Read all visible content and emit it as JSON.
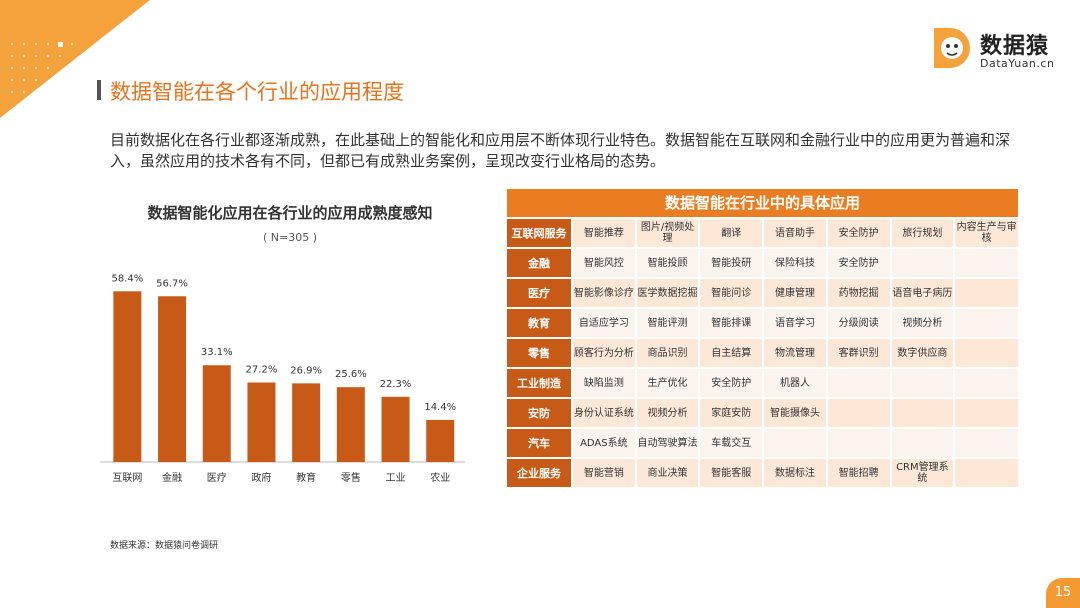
{
  "header": {
    "title": "数据智能在各个行业的应用程度",
    "intro": "目前数据化在各行业都逐渐成熟，在此基础上的智能化和应用层不断体现行业特色。数据智能在互联网和金融行业中的应用更为普遍和深入，虽然应用的技术各有不同，但都已有成熟业务案例，呈现改变行业格局的态势。"
  },
  "logo": {
    "cn": "数据猿",
    "en": "DataYuan.cn",
    "letter": "D"
  },
  "colors": {
    "accent": "#e8731c",
    "bar": "#c85a18",
    "table_header": "#ea7d22"
  },
  "chart_data": {
    "type": "bar",
    "title": "数据智能化应用在各行业的应用成熟度感知",
    "subtitle": "( N=305 )",
    "categories": [
      "互联网",
      "金融",
      "医疗",
      "政府",
      "教育",
      "零售",
      "工业",
      "农业"
    ],
    "values": [
      58.4,
      56.7,
      33.1,
      27.2,
      26.9,
      25.6,
      22.3,
      14.4
    ],
    "value_labels": [
      "58.4%",
      "56.7%",
      "33.1%",
      "27.2%",
      "26.9%",
      "25.6%",
      "22.3%",
      "14.4%"
    ],
    "ylim": [
      0,
      65
    ],
    "grid": false
  },
  "source": "数据来源：数据猿问卷调研",
  "table": {
    "title": "数据智能在行业中的具体应用",
    "rows": [
      {
        "category": "互联网服务",
        "items": [
          "智能推荐",
          "图片/视频处理",
          "翻译",
          "语音助手",
          "安全防护",
          "旅行规划",
          "内容生产与审核"
        ]
      },
      {
        "category": "金融",
        "items": [
          "智能风控",
          "智能投顾",
          "智能投研",
          "保险科技",
          "安全防护",
          "",
          ""
        ]
      },
      {
        "category": "医疗",
        "items": [
          "智能影像诊疗",
          "医学数据挖掘",
          "智能问诊",
          "健康管理",
          "药物挖掘",
          "语音电子病历",
          ""
        ]
      },
      {
        "category": "教育",
        "items": [
          "自适应学习",
          "智能评测",
          "智能排课",
          "语音学习",
          "分级阅读",
          "视频分析",
          ""
        ]
      },
      {
        "category": "零售",
        "items": [
          "顾客行为分析",
          "商品识别",
          "自主结算",
          "物流管理",
          "客群识别",
          "数字供应商",
          ""
        ]
      },
      {
        "category": "工业制造",
        "items": [
          "缺陷监测",
          "生产优化",
          "安全防护",
          "机器人",
          "",
          "",
          ""
        ]
      },
      {
        "category": "安防",
        "items": [
          "身份认证系统",
          "视频分析",
          "家庭安防",
          "智能摄像头",
          "",
          "",
          ""
        ]
      },
      {
        "category": "汽车",
        "items": [
          "ADAS系统",
          "自动驾驶算法",
          "车载交互",
          "",
          "",
          "",
          ""
        ]
      },
      {
        "category": "企业服务",
        "items": [
          "智能营销",
          "商业决策",
          "智能客服",
          "数据标注",
          "智能招聘",
          "CRM管理系统",
          ""
        ]
      }
    ]
  },
  "page_number": "15"
}
